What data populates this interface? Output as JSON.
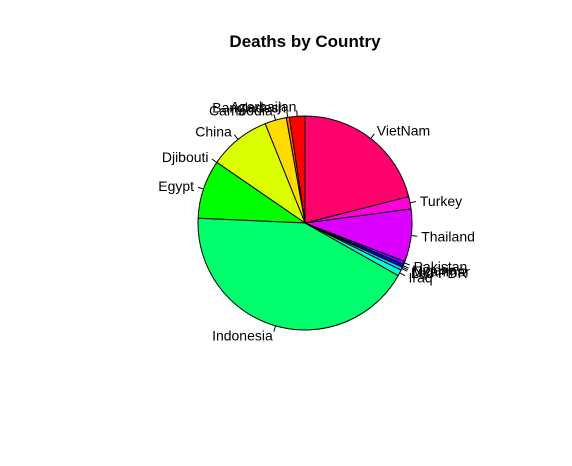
{
  "chart_data": {
    "type": "pie",
    "title": "Deaths by Country",
    "labels": [
      "Azerbaijan",
      "Bangladesh",
      "Cambodia",
      "China",
      "Djibouti",
      "Egypt",
      "Indonesia",
      "Iraq",
      "Lao PDR",
      "Myanmar",
      "Nigeria",
      "Pakistan",
      "Thailand",
      "Turkey",
      "VietNam"
    ],
    "values": [
      5,
      1,
      7,
      20,
      0,
      19,
      91,
      2,
      1,
      0,
      1,
      1,
      17,
      4,
      45
    ],
    "colors": [
      "#FF0000",
      "#FF6D00",
      "#FFDB00",
      "#DBFF00",
      "#6DFF00",
      "#00FF00",
      "#00FF6D",
      "#00FFDB",
      "#00DBFF",
      "#006DFF",
      "#0000FF",
      "#6D00FF",
      "#DB00FF",
      "#FF00DB",
      "#FF006D"
    ],
    "start_angle_deg": 90,
    "direction": "counterclockwise"
  }
}
